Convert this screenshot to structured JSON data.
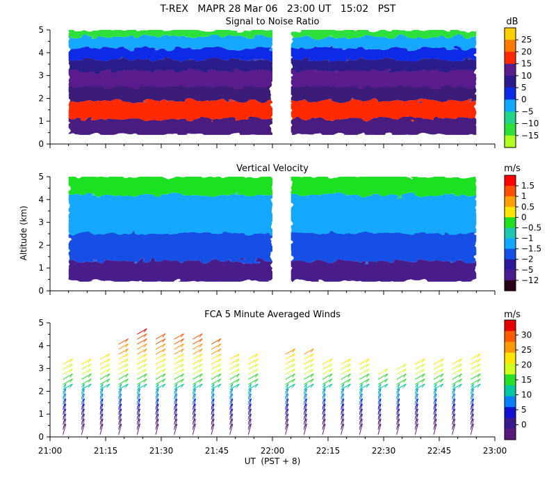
{
  "figure": {
    "title": "T-REX   MAPR 28 Mar 06   23:00 UT   15:02   PST",
    "xlabel": "UT  (PST + 8)",
    "ylabel": "Altitude (km)",
    "x_tick_labels": [
      "21:00",
      "21:15",
      "21:30",
      "21:45",
      "22:00",
      "22:15",
      "22:30",
      "22:45",
      "23:00"
    ],
    "y_tick_labels": [
      "0",
      "1",
      "2",
      "3",
      "4",
      "5"
    ]
  },
  "chart_data": [
    {
      "type": "heatmap",
      "title": "Signal to Noise Ratio",
      "colorbar_unit": "dB",
      "colorbar_labels": [
        "25",
        "20",
        "15",
        "10",
        "5",
        "0",
        "−5",
        "−10",
        "−15"
      ],
      "colorbar_colors": [
        "#ffd000",
        "#ff7800",
        "#ff2a00",
        "#5a1e8c",
        "#2a1a8a",
        "#0a2ae6",
        "#12a8ff",
        "#24d48a",
        "#2fe03a",
        "#b0ff20"
      ],
      "xlim": [
        "21:00",
        "23:00"
      ],
      "ylim": [
        0,
        5
      ],
      "data_gap": [
        "22:00",
        "22:05"
      ],
      "layers": [
        {
          "from_km": 0.4,
          "to_km": 1.1,
          "color": "#4a1a80"
        },
        {
          "from_km": 1.1,
          "to_km": 1.9,
          "color": "#ff2a00"
        },
        {
          "from_km": 1.9,
          "to_km": 2.5,
          "color": "#3a1d78"
        },
        {
          "from_km": 2.5,
          "to_km": 3.2,
          "color": "#5a1e8c"
        },
        {
          "from_km": 3.2,
          "to_km": 3.7,
          "color": "#2a1a8a"
        },
        {
          "from_km": 3.7,
          "to_km": 4.2,
          "color": "#0a2ae6"
        },
        {
          "from_km": 4.2,
          "to_km": 4.7,
          "color": "#12a8ff"
        },
        {
          "from_km": 4.7,
          "to_km": 5.0,
          "color": "#2fe03a"
        }
      ]
    },
    {
      "type": "heatmap",
      "title": "Vertical Velocity",
      "colorbar_unit": "m/s",
      "colorbar_labels": [
        "1.5",
        "1",
        "0.5",
        "0",
        "−0.5",
        "−1",
        "−1.5",
        "−2",
        "−5",
        "−12"
      ],
      "colorbar_colors": [
        "#ff0000",
        "#ff5000",
        "#ffa000",
        "#ffe600",
        "#1ee020",
        "#1ec8b0",
        "#12a8ff",
        "#1450e6",
        "#2a1a9a",
        "#4a1e8c",
        "#2a0018"
      ],
      "xlim": [
        "21:00",
        "23:00"
      ],
      "ylim": [
        0,
        5
      ],
      "data_gap": [
        "22:00",
        "22:05"
      ],
      "layers": [
        {
          "from_km": 0.4,
          "to_km": 1.3,
          "color": "#4a1e8c"
        },
        {
          "from_km": 1.3,
          "to_km": 2.5,
          "color": "#1450e6"
        },
        {
          "from_km": 2.5,
          "to_km": 4.2,
          "color": "#12a8ff"
        },
        {
          "from_km": 4.2,
          "to_km": 5.0,
          "color": "#1ee020"
        }
      ]
    },
    {
      "type": "scatter",
      "title": "FCA 5 Minute Averaged Winds",
      "colorbar_unit": "m/s",
      "colorbar_labels": [
        "30",
        "25",
        "20",
        "15",
        "10",
        "5",
        "0"
      ],
      "colorbar_colors": [
        "#e60000",
        "#ff5a00",
        "#ff9a00",
        "#ffe600",
        "#d0ff20",
        "#28e028",
        "#00c8a0",
        "#0a80ff",
        "#1010d0",
        "#3a1a8a",
        "#5a1a7a"
      ],
      "xlim": [
        "21:00",
        "23:00"
      ],
      "ylim": [
        0,
        5
      ],
      "note": "wind barbs every 5 minutes; tops of profiles (km) per time",
      "profile_times": [
        "21:05",
        "21:10",
        "21:15",
        "21:20",
        "21:25",
        "21:30",
        "21:35",
        "21:40",
        "21:45",
        "21:50",
        "21:55",
        "22:05",
        "22:10",
        "22:15",
        "22:20",
        "22:25",
        "22:30",
        "22:35",
        "22:40",
        "22:45",
        "22:50",
        "22:55"
      ],
      "profile_tops_km": [
        3.4,
        3.4,
        3.6,
        4.2,
        4.6,
        4.4,
        4.3,
        4.3,
        4.1,
        3.6,
        3.5,
        3.8,
        3.7,
        3.2,
        3.2,
        3.2,
        2.9,
        3.1,
        3.2,
        3.3,
        3.4,
        3.5
      ]
    }
  ]
}
